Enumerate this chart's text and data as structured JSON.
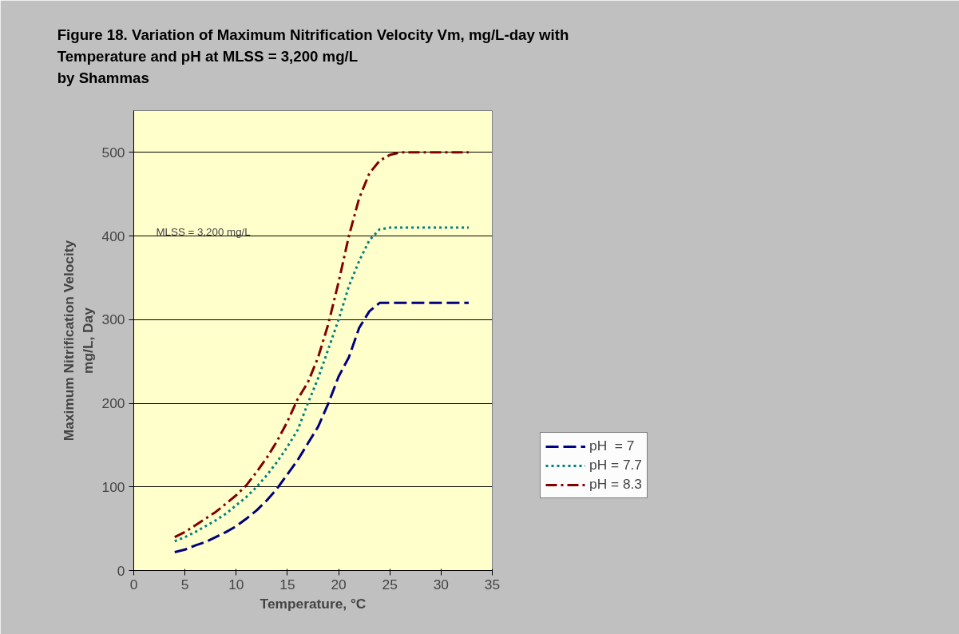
{
  "chart_data": {
    "type": "line",
    "title": "Figure 18. Variation of Maximum Nitrification Velocity Vm, mg/L-day with\nTemperature and pH at MLSS = 3,200 mg/L\nby Shammas",
    "xlabel": "Temperature, °C",
    "ylabel": "Maximum Nitrification Velocity\nmg/L, Day",
    "annotations": [
      "MLSS = 3,200 mg/L"
    ],
    "xlim": [
      0,
      35
    ],
    "xticks": [
      0,
      5,
      10,
      15,
      20,
      25,
      30,
      35
    ],
    "ylim": [
      0,
      550
    ],
    "yticks": [
      0,
      100,
      200,
      300,
      400,
      500
    ],
    "grid": "y",
    "legend": "right",
    "marker": "none",
    "series": [
      {
        "name": "pH  = 7",
        "color": "#000080",
        "line_style": "dashed",
        "x": [
          4,
          5,
          6,
          7,
          8,
          9,
          10,
          11,
          12,
          13,
          14,
          15,
          16,
          17,
          18,
          19,
          20,
          21,
          22,
          23,
          24,
          25,
          32.7
        ],
        "values": [
          22,
          25,
          30,
          34,
          40,
          46,
          53,
          62,
          72,
          84,
          98,
          115,
          132,
          152,
          172,
          200,
          232,
          255,
          290,
          310,
          320,
          320,
          320
        ]
      },
      {
        "name": "pH = 7.7",
        "color": "#008080",
        "line_style": "dotted",
        "x": [
          4,
          5,
          6,
          7,
          8,
          9,
          10,
          11,
          12,
          13,
          14,
          15,
          16,
          17,
          18,
          19,
          20,
          21,
          22,
          23,
          24,
          25,
          32.7
        ],
        "values": [
          35,
          40,
          46,
          53,
          60,
          68,
          78,
          88,
          100,
          114,
          130,
          148,
          168,
          200,
          230,
          265,
          300,
          340,
          370,
          395,
          408,
          410,
          410
        ]
      },
      {
        "name": "pH = 8.3",
        "color": "#800000",
        "line_style": "dashdot",
        "x": [
          4,
          5,
          6,
          7,
          8,
          9,
          10,
          11,
          12,
          13,
          14,
          15,
          16,
          17,
          18,
          19,
          20,
          21,
          22,
          23,
          24,
          25,
          26,
          32.7
        ],
        "values": [
          40,
          46,
          54,
          62,
          70,
          80,
          90,
          102,
          118,
          135,
          155,
          178,
          205,
          225,
          255,
          295,
          345,
          400,
          445,
          475,
          490,
          497,
          500,
          500
        ]
      }
    ]
  }
}
